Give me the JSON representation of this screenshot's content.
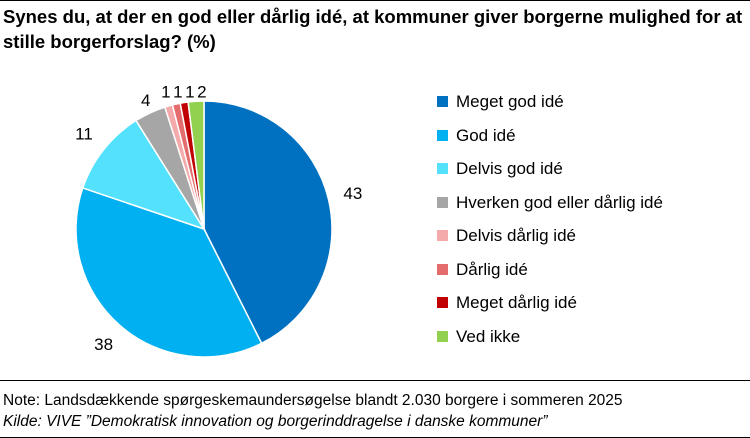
{
  "title": "Synes du, at der en god eller dårlig idé, at kommuner giver borgerne mulighed for at stille borgerforslag? (%)",
  "note": "Note: Landsdækkende spørgeskemaundersøgelse blandt 2.030 borgere i sommeren 2025",
  "source": "Kilde: VIVE ”Demokratisk innovation og borgerinddragelse i danske kommuner”",
  "chart_data": {
    "type": "pie",
    "title": "Synes du, at der en god eller dårlig idé, at kommuner giver borgerne mulighed for at stille borgerforslag? (%)",
    "legend_position": "right",
    "categories": [
      "Meget god idé",
      "God idé",
      "Delvis god idé",
      "Hverken god eller dårlig idé",
      "Delvis dårlig idé",
      "Dårlig idé",
      "Meget dårlig idé",
      "Ved ikke"
    ],
    "values": [
      43,
      38,
      11,
      4,
      1,
      1,
      1,
      2
    ],
    "labels": [
      "43",
      "38",
      "11",
      "4",
      "1",
      "1",
      "1",
      "2"
    ],
    "colors": [
      "#0070C0",
      "#00B0F0",
      "#53E1FD",
      "#A6A6A6",
      "#F4AAAA",
      "#E46C6C",
      "#C00000",
      "#92D050"
    ]
  }
}
